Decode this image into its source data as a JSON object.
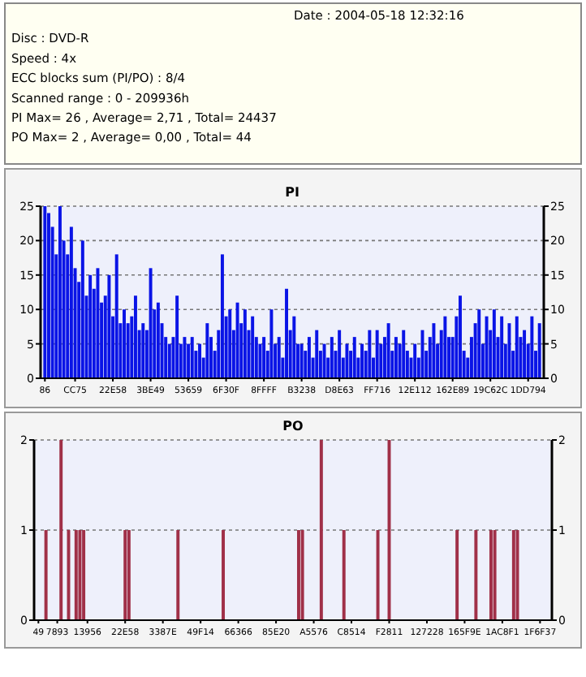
{
  "chart_data": [
    {
      "type": "other",
      "annotations": [
        "Date : 2004-05-18 12:32:16",
        "Disc : DVD-R",
        "Speed : 4x",
        "ECC blocks sum (PI/PO) : 8/4",
        "Scanned range : 0 - 209936h",
        "PI Max= 26 , Average= 2,71 , Total= 24437",
        "PO Max= 2 , Average= 0,00 , Total= 44"
      ]
    },
    {
      "type": "bar",
      "title": "PI",
      "color": "#0a14e6",
      "grid": "y",
      "ylim": [
        0,
        25
      ],
      "yticks": [
        0,
        5,
        10,
        15,
        20,
        25
      ],
      "y2lim": [
        0,
        25
      ],
      "y2ticks": [
        0,
        5,
        10,
        15,
        20,
        25
      ],
      "categories": [
        "86",
        null,
        null,
        null,
        null,
        null,
        null,
        null,
        "CC75",
        null,
        null,
        null,
        null,
        null,
        null,
        null,
        null,
        null,
        "22E58",
        null,
        null,
        null,
        null,
        null,
        null,
        null,
        null,
        null,
        "3BE49",
        null,
        null,
        null,
        null,
        null,
        null,
        null,
        null,
        null,
        "53659",
        null,
        null,
        null,
        null,
        null,
        null,
        null,
        null,
        null,
        "6F30F",
        null,
        null,
        null,
        null,
        null,
        null,
        null,
        null,
        null,
        "8FFFF",
        null,
        null,
        null,
        null,
        null,
        null,
        null,
        null,
        null,
        "B3238",
        null,
        null,
        null,
        null,
        null,
        null,
        null,
        null,
        null,
        "D8E63",
        null,
        null,
        null,
        null,
        null,
        null,
        null,
        null,
        null,
        "FF716",
        null,
        null,
        null,
        null,
        null,
        null,
        null,
        null,
        null,
        "12E112",
        null,
        null,
        null,
        null,
        null,
        null,
        null,
        null,
        null,
        "162E89",
        null,
        null,
        null,
        null,
        null,
        null,
        null,
        null,
        null,
        "19C62C",
        null,
        null,
        null,
        null,
        null,
        null,
        null,
        null,
        null,
        "1DD794",
        null,
        null,
        null
      ],
      "values": [
        25,
        24,
        22,
        18,
        25,
        20,
        18,
        22,
        16,
        14,
        20,
        12,
        15,
        13,
        16,
        11,
        12,
        15,
        9,
        18,
        8,
        10,
        8,
        9,
        12,
        7,
        8,
        7,
        16,
        10,
        11,
        8,
        6,
        5,
        6,
        12,
        5,
        6,
        5,
        6,
        4,
        5,
        3,
        8,
        6,
        4,
        7,
        18,
        9,
        10,
        7,
        11,
        8,
        10,
        7,
        9,
        6,
        5,
        6,
        4,
        10,
        5,
        6,
        3,
        13,
        7,
        9,
        5,
        5,
        4,
        6,
        3,
        7,
        4,
        5,
        3,
        6,
        4,
        7,
        3,
        5,
        4,
        6,
        3,
        5,
        4,
        7,
        3,
        7,
        5,
        6,
        8,
        4,
        6,
        5,
        7,
        4,
        3,
        5,
        3,
        7,
        4,
        6,
        8,
        5,
        7,
        9,
        6,
        6,
        9,
        12,
        4,
        3,
        6,
        8,
        10,
        5,
        9,
        7,
        10,
        6,
        9,
        5,
        8,
        4,
        9,
        6,
        7,
        5,
        9,
        4,
        8
      ]
    },
    {
      "type": "bar",
      "title": "PO",
      "color": "#a03048",
      "grid": "y",
      "ylim": [
        0,
        2
      ],
      "yticks": [
        0,
        1,
        2
      ],
      "y2lim": [
        0,
        2
      ],
      "y2ticks": [
        0,
        1,
        2
      ],
      "categories": [
        "49",
        null,
        null,
        null,
        null,
        "7893",
        null,
        null,
        null,
        null,
        null,
        null,
        null,
        "13956",
        null,
        null,
        null,
        null,
        null,
        null,
        null,
        null,
        null,
        "22E58",
        null,
        null,
        null,
        null,
        null,
        null,
        null,
        null,
        null,
        "3387E",
        null,
        null,
        null,
        null,
        null,
        null,
        null,
        null,
        null,
        "49F14",
        null,
        null,
        null,
        null,
        null,
        null,
        null,
        null,
        null,
        "66366",
        null,
        null,
        null,
        null,
        null,
        null,
        null,
        null,
        null,
        "85E20",
        null,
        null,
        null,
        null,
        null,
        null,
        null,
        null,
        null,
        "A5576",
        null,
        null,
        null,
        null,
        null,
        null,
        null,
        null,
        null,
        "C8514",
        null,
        null,
        null,
        null,
        null,
        null,
        null,
        null,
        null,
        "F2811",
        null,
        null,
        null,
        null,
        null,
        null,
        null,
        null,
        null,
        "127228",
        null,
        null,
        null,
        null,
        null,
        null,
        null,
        null,
        null,
        "165F9E",
        null,
        null,
        null,
        null,
        null,
        null,
        null,
        null,
        null,
        "1AC8F1",
        null,
        null,
        null,
        null,
        null,
        null,
        null,
        null,
        null,
        "1F6F37",
        null,
        null
      ],
      "values": [
        0,
        0,
        1,
        0,
        0,
        0,
        2,
        0,
        1,
        0,
        1,
        1,
        1,
        0,
        0,
        0,
        0,
        0,
        0,
        0,
        0,
        0,
        0,
        1,
        1,
        0,
        0,
        0,
        0,
        0,
        0,
        0,
        0,
        0,
        0,
        0,
        0,
        1,
        0,
        0,
        0,
        0,
        0,
        0,
        0,
        0,
        0,
        0,
        0,
        1,
        0,
        0,
        0,
        0,
        0,
        0,
        0,
        0,
        0,
        0,
        0,
        0,
        0,
        0,
        0,
        0,
        0,
        0,
        0,
        1,
        1,
        0,
        0,
        0,
        0,
        2,
        0,
        0,
        0,
        0,
        0,
        1,
        0,
        0,
        0,
        0,
        0,
        0,
        0,
        0,
        1,
        0,
        0,
        2,
        0,
        0,
        0,
        0,
        0,
        0,
        0,
        0,
        0,
        0,
        0,
        0,
        0,
        0,
        0,
        0,
        0,
        1,
        0,
        0,
        0,
        0,
        1,
        0,
        0,
        0,
        1,
        1,
        0,
        0,
        0,
        0,
        1,
        1,
        0,
        0,
        0,
        0,
        0,
        0,
        0,
        0
      ]
    }
  ]
}
